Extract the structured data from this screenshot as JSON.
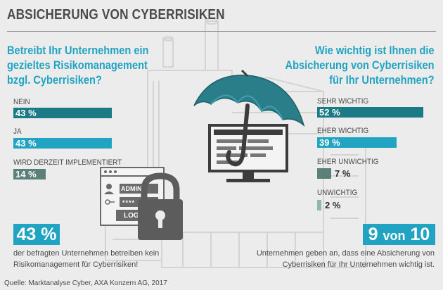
{
  "title": "ABSICHERUNG VON CYBERRISIKEN",
  "colors": {
    "teal_dark": "#1a7b87",
    "teal_light": "#21a3c2",
    "gray_green": "#5b8078",
    "pale_green": "#8cbaa6",
    "background": "#ececec"
  },
  "icons": [
    "umbrella-icon",
    "monitor-icon",
    "padlock-icon",
    "login-window-icon",
    "factory-illustration"
  ],
  "login_window": {
    "admin": "ADMIN",
    "password": "****",
    "login": "LOGI"
  },
  "chart_data": [
    {
      "type": "bar",
      "orientation": "horizontal",
      "title_lines": [
        "Betreibt Ihr Unternehmen ein",
        "gezieltes Risikomanagement",
        "bzgl. Cyberrisiken?"
      ],
      "categories": [
        "NEIN",
        "JA",
        "WIRD DERZEIT IMPLEMENTIERT"
      ],
      "values": [
        43,
        43,
        14
      ],
      "value_labels": [
        "43 %",
        "43 %",
        "14 %"
      ],
      "bar_colors": [
        "#1a7b87",
        "#21a3c2",
        "#5b8078"
      ],
      "value_inside": [
        true,
        true,
        true
      ],
      "unit": "%"
    },
    {
      "type": "bar",
      "orientation": "horizontal",
      "title_lines": [
        "Wie wichtig ist Ihnen die",
        "Absicherung von Cyberrisiken",
        "für Ihr Unternehmen?"
      ],
      "categories": [
        "SEHR WICHTIG",
        "EHER WICHTIG",
        "EHER UNWICHTIG",
        "UNWICHTIG"
      ],
      "values": [
        52,
        39,
        7,
        2
      ],
      "value_labels": [
        "52 %",
        "39 %",
        "7 %",
        "2 %"
      ],
      "bar_colors": [
        "#1a7b87",
        "#21a3c2",
        "#5b8078",
        "#8cbaa6"
      ],
      "value_inside": [
        true,
        true,
        false,
        false
      ],
      "unit": "%"
    }
  ],
  "highlight_left": {
    "value": "43 %",
    "caption_lines": [
      "der befragten Unternehmen betreiben kein",
      "Risikomanagement für Cyberrisiken!"
    ]
  },
  "highlight_right": {
    "num": "9",
    "word": "von",
    "den": "10",
    "caption_lines": [
      "Unternehmen geben an, dass eine Absicherung von",
      "Cyberrisiken für Ihr Unternehmen wichtig ist."
    ]
  },
  "source": "Quelle: Marktanalyse Cyber, AXA Konzern AG, 2017"
}
